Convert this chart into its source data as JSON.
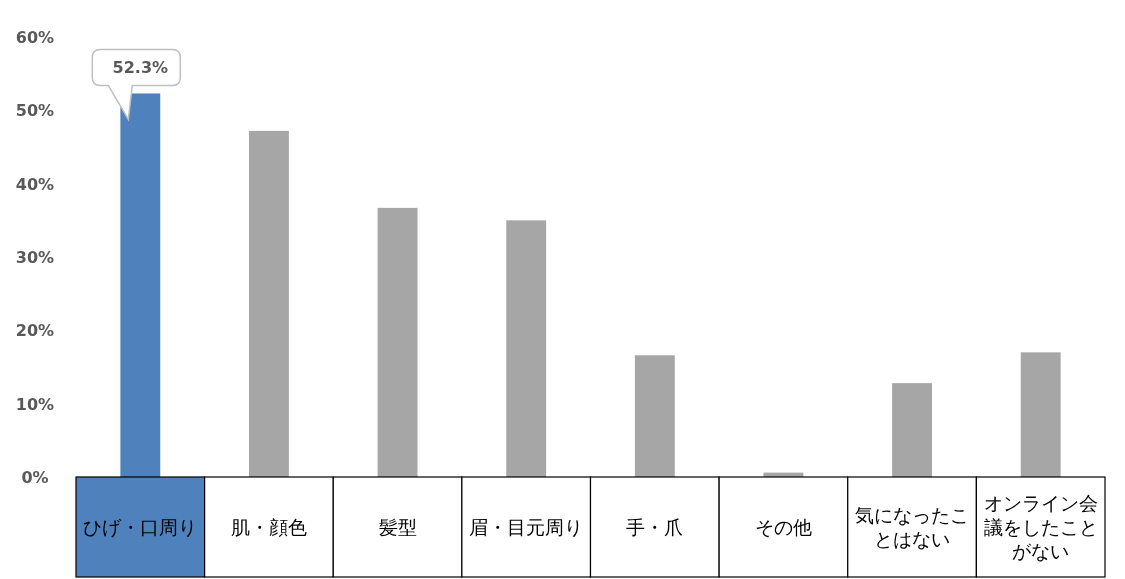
{
  "chart_data": {
    "type": "bar",
    "categories": [
      "ひげ・口周り",
      "肌・顔色",
      "髪型",
      "眉・目元周り",
      "手・爪",
      "その他",
      "気になったことはない",
      "オンライン会議をしたことがない"
    ],
    "values": [
      52.3,
      47.2,
      36.7,
      35.0,
      16.6,
      0.6,
      12.8,
      17.0
    ],
    "colors": [
      "#4f81bd",
      "#a6a6a6",
      "#a6a6a6",
      "#a6a6a6",
      "#a6a6a6",
      "#a6a6a6",
      "#a6a6a6",
      "#a6a6a6"
    ],
    "value_labels": [
      "52.3%",
      null,
      null,
      null,
      null,
      null,
      null,
      null
    ],
    "ylim": [
      0,
      60
    ],
    "yticks": [
      {
        "value": 0,
        "label": "0%"
      },
      {
        "value": 10,
        "label": "10%"
      },
      {
        "value": 20,
        "label": "20%"
      },
      {
        "value": 30,
        "label": "30%"
      },
      {
        "value": 40,
        "label": "40%"
      },
      {
        "value": 50,
        "label": "50%"
      },
      {
        "value": 60,
        "label": "60%"
      }
    ]
  }
}
